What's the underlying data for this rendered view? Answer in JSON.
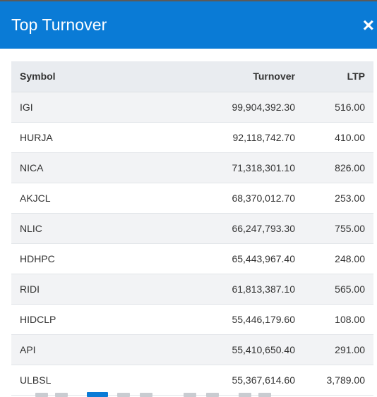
{
  "modal": {
    "title": "Top Turnover",
    "close_label": "×"
  },
  "table": {
    "headers": [
      "Symbol",
      "Turnover",
      "LTP"
    ],
    "rows": [
      {
        "symbol": "IGI",
        "turnover": "99,904,392.30",
        "ltp": "516.00"
      },
      {
        "symbol": "HURJA",
        "turnover": "92,118,742.70",
        "ltp": "410.00"
      },
      {
        "symbol": "NICA",
        "turnover": "71,318,301.10",
        "ltp": "826.00"
      },
      {
        "symbol": "AKJCL",
        "turnover": "68,370,012.70",
        "ltp": "253.00"
      },
      {
        "symbol": "NLIC",
        "turnover": "66,247,793.30",
        "ltp": "755.00"
      },
      {
        "symbol": "HDHPC",
        "turnover": "65,443,967.40",
        "ltp": "248.00"
      },
      {
        "symbol": "RIDI",
        "turnover": "61,813,387.10",
        "ltp": "565.00"
      },
      {
        "symbol": "HIDCLP",
        "turnover": "55,446,179.60",
        "ltp": "108.00"
      },
      {
        "symbol": "API",
        "turnover": "55,410,650.40",
        "ltp": "291.00"
      },
      {
        "symbol": "ULBSL",
        "turnover": "55,367,614.60",
        "ltp": "3,789.00"
      }
    ]
  },
  "colors": {
    "header_bg": "#0a7bd6",
    "table_head_bg": "#e9ecf0",
    "row_alt_bg": "#f2f3f5"
  }
}
